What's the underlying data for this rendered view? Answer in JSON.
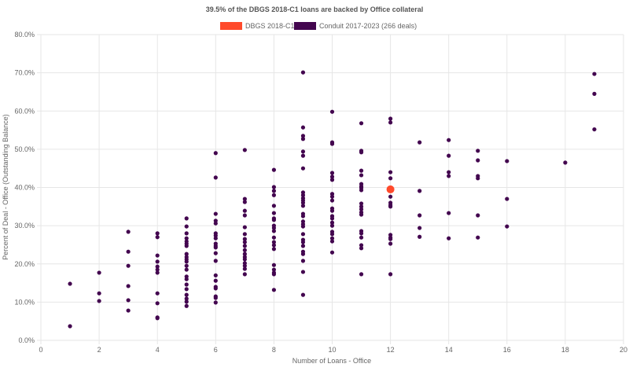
{
  "chart_data": {
    "type": "scatter",
    "title": "39.5% of the DBGS 2018-C1 loans are backed by Office collateral",
    "xlabel": "Number of Loans - Office",
    "ylabel": "Percent of Deal - Office (Outstanding Balance)",
    "xlim": [
      0,
      20
    ],
    "ylim": [
      0,
      80
    ],
    "x_ticks": [
      "0",
      "2",
      "4",
      "6",
      "8",
      "10",
      "12",
      "14",
      "16",
      "18",
      "20"
    ],
    "y_ticks": [
      "0.0%",
      "10.0%",
      "20.0%",
      "30.0%",
      "40.0%",
      "50.0%",
      "60.0%",
      "70.0%",
      "80.0%"
    ],
    "grid": true,
    "legend_placement": "top",
    "series": [
      {
        "name": "DBGS 2018-C1",
        "color": "#ff4a2b",
        "points": [
          [
            12,
            39.5
          ]
        ]
      },
      {
        "name": "Conduit 2017-2023 (266 deals)",
        "color": "#43064f",
        "points": [
          [
            1,
            14.8
          ],
          [
            1,
            3.7
          ],
          [
            2,
            17.7
          ],
          [
            2,
            12.3
          ],
          [
            2,
            10.3
          ],
          [
            3,
            28.4
          ],
          [
            3,
            23.2
          ],
          [
            3,
            19.5
          ],
          [
            3,
            14.2
          ],
          [
            3,
            10.5
          ],
          [
            3,
            7.8
          ],
          [
            4,
            28
          ],
          [
            4,
            27
          ],
          [
            4,
            22.2
          ],
          [
            4,
            20.6
          ],
          [
            4,
            19.3
          ],
          [
            4,
            18.5
          ],
          [
            4,
            17.7
          ],
          [
            4,
            12.3
          ],
          [
            4,
            9.7
          ],
          [
            4,
            6.0
          ],
          [
            4,
            5.8
          ],
          [
            5,
            31.9
          ],
          [
            5,
            29.8
          ],
          [
            5,
            28
          ],
          [
            5,
            26.7
          ],
          [
            5,
            25.9
          ],
          [
            5,
            25.3
          ],
          [
            5,
            24.7
          ],
          [
            5,
            22.6
          ],
          [
            5,
            21.8
          ],
          [
            5,
            21.2
          ],
          [
            5,
            20.6
          ],
          [
            5,
            19.5
          ],
          [
            5,
            18.5
          ],
          [
            5,
            16.7
          ],
          [
            5,
            16
          ],
          [
            5,
            14.6
          ],
          [
            5,
            13.4
          ],
          [
            5,
            11.9
          ],
          [
            5,
            10.9
          ],
          [
            5,
            10.1
          ],
          [
            5,
            9.0
          ],
          [
            6,
            49
          ],
          [
            6,
            42.6
          ],
          [
            6,
            33.1
          ],
          [
            6,
            31.3
          ],
          [
            6,
            30.6
          ],
          [
            6,
            28
          ],
          [
            6,
            27.4
          ],
          [
            6,
            26.7
          ],
          [
            6,
            25.3
          ],
          [
            6,
            24.7
          ],
          [
            6,
            24.3
          ],
          [
            6,
            22.8
          ],
          [
            6,
            20.8
          ],
          [
            6,
            17
          ],
          [
            6,
            15.6
          ],
          [
            6,
            14
          ],
          [
            6,
            13.6
          ],
          [
            6,
            11.5
          ],
          [
            6,
            11.1
          ],
          [
            6,
            9.9
          ],
          [
            7,
            49.8
          ],
          [
            7,
            37
          ],
          [
            7,
            36.2
          ],
          [
            7,
            33.9
          ],
          [
            7,
            32.7
          ],
          [
            7,
            29.6
          ],
          [
            7,
            27.8
          ],
          [
            7,
            26.5
          ],
          [
            7,
            25.7
          ],
          [
            7,
            24.7
          ],
          [
            7,
            23.6
          ],
          [
            7,
            22.6
          ],
          [
            7,
            21.8
          ],
          [
            7,
            21.2
          ],
          [
            7,
            20.2
          ],
          [
            7,
            19.5
          ],
          [
            7,
            18.7
          ],
          [
            7,
            17.3
          ],
          [
            8,
            44.6
          ],
          [
            8,
            40.1
          ],
          [
            8,
            39.1
          ],
          [
            8,
            38
          ],
          [
            8,
            35.2
          ],
          [
            8,
            33.3
          ],
          [
            8,
            31.9
          ],
          [
            8,
            31.5
          ],
          [
            8,
            30
          ],
          [
            8,
            29.4
          ],
          [
            8,
            28.6
          ],
          [
            8,
            26.9
          ],
          [
            8,
            25.7
          ],
          [
            8,
            24.9
          ],
          [
            8,
            23.9
          ],
          [
            8,
            19.7
          ],
          [
            8,
            18.5
          ],
          [
            8,
            17.7
          ],
          [
            8,
            17.3
          ],
          [
            8,
            13.2
          ],
          [
            9,
            70.1
          ],
          [
            9,
            55.7
          ],
          [
            9,
            53.5
          ],
          [
            9,
            52.7
          ],
          [
            9,
            49.4
          ],
          [
            9,
            48.3
          ],
          [
            9,
            45
          ],
          [
            9,
            38.7
          ],
          [
            9,
            38
          ],
          [
            9,
            37.2
          ],
          [
            9,
            36.6
          ],
          [
            9,
            36
          ],
          [
            9,
            35.2
          ],
          [
            9,
            33.1
          ],
          [
            9,
            32.5
          ],
          [
            9,
            31.1
          ],
          [
            9,
            30.4
          ],
          [
            9,
            29.8
          ],
          [
            9,
            27.8
          ],
          [
            9,
            26.3
          ],
          [
            9,
            25.7
          ],
          [
            9,
            24.7
          ],
          [
            9,
            23.2
          ],
          [
            9,
            22.6
          ],
          [
            9,
            20.8
          ],
          [
            9,
            17.9
          ],
          [
            9,
            11.9
          ],
          [
            10,
            59.8
          ],
          [
            10,
            51.8
          ],
          [
            10,
            51.4
          ],
          [
            10,
            43.8
          ],
          [
            10,
            42.8
          ],
          [
            10,
            42
          ],
          [
            10,
            38.3
          ],
          [
            10,
            37.6
          ],
          [
            10,
            36.6
          ],
          [
            10,
            34.5
          ],
          [
            10,
            33.9
          ],
          [
            10,
            32.5
          ],
          [
            10,
            31.9
          ],
          [
            10,
            30.8
          ],
          [
            10,
            30
          ],
          [
            10,
            28.4
          ],
          [
            10,
            27.8
          ],
          [
            10,
            26.7
          ],
          [
            10,
            25.9
          ],
          [
            10,
            23
          ],
          [
            11,
            56.8
          ],
          [
            11,
            49.6
          ],
          [
            11,
            49.2
          ],
          [
            11,
            44.4
          ],
          [
            11,
            43.2
          ],
          [
            11,
            40.9
          ],
          [
            11,
            40.3
          ],
          [
            11,
            39.9
          ],
          [
            11,
            39.3
          ],
          [
            11,
            35.8
          ],
          [
            11,
            35
          ],
          [
            11,
            34.3
          ],
          [
            11,
            33.5
          ],
          [
            11,
            32.9
          ],
          [
            11,
            28.6
          ],
          [
            11,
            28
          ],
          [
            11,
            26.9
          ],
          [
            11,
            24.9
          ],
          [
            11,
            24.1
          ],
          [
            11,
            17.3
          ],
          [
            12,
            58
          ],
          [
            12,
            57
          ],
          [
            12,
            44
          ],
          [
            12,
            42.4
          ],
          [
            12,
            37.6
          ],
          [
            12,
            36
          ],
          [
            12,
            35.4
          ],
          [
            12,
            35
          ],
          [
            12,
            27.6
          ],
          [
            12,
            26.9
          ],
          [
            12,
            26.5
          ],
          [
            12,
            25.3
          ],
          [
            12,
            17.3
          ],
          [
            13,
            51.8
          ],
          [
            13,
            39.1
          ],
          [
            13,
            32.7
          ],
          [
            13,
            29.4
          ],
          [
            13,
            27.1
          ],
          [
            14,
            52.4
          ],
          [
            14,
            48.3
          ],
          [
            14,
            44
          ],
          [
            14,
            43
          ],
          [
            14,
            33.3
          ],
          [
            14,
            26.7
          ],
          [
            15,
            49.6
          ],
          [
            15,
            47.1
          ],
          [
            15,
            43
          ],
          [
            15,
            42.4
          ],
          [
            15,
            32.7
          ],
          [
            15,
            26.9
          ],
          [
            16,
            46.9
          ],
          [
            16,
            37
          ],
          [
            16,
            29.8
          ],
          [
            18,
            46.5
          ],
          [
            19,
            69.7
          ],
          [
            19,
            64.5
          ],
          [
            19,
            55.2
          ]
        ]
      }
    ]
  }
}
